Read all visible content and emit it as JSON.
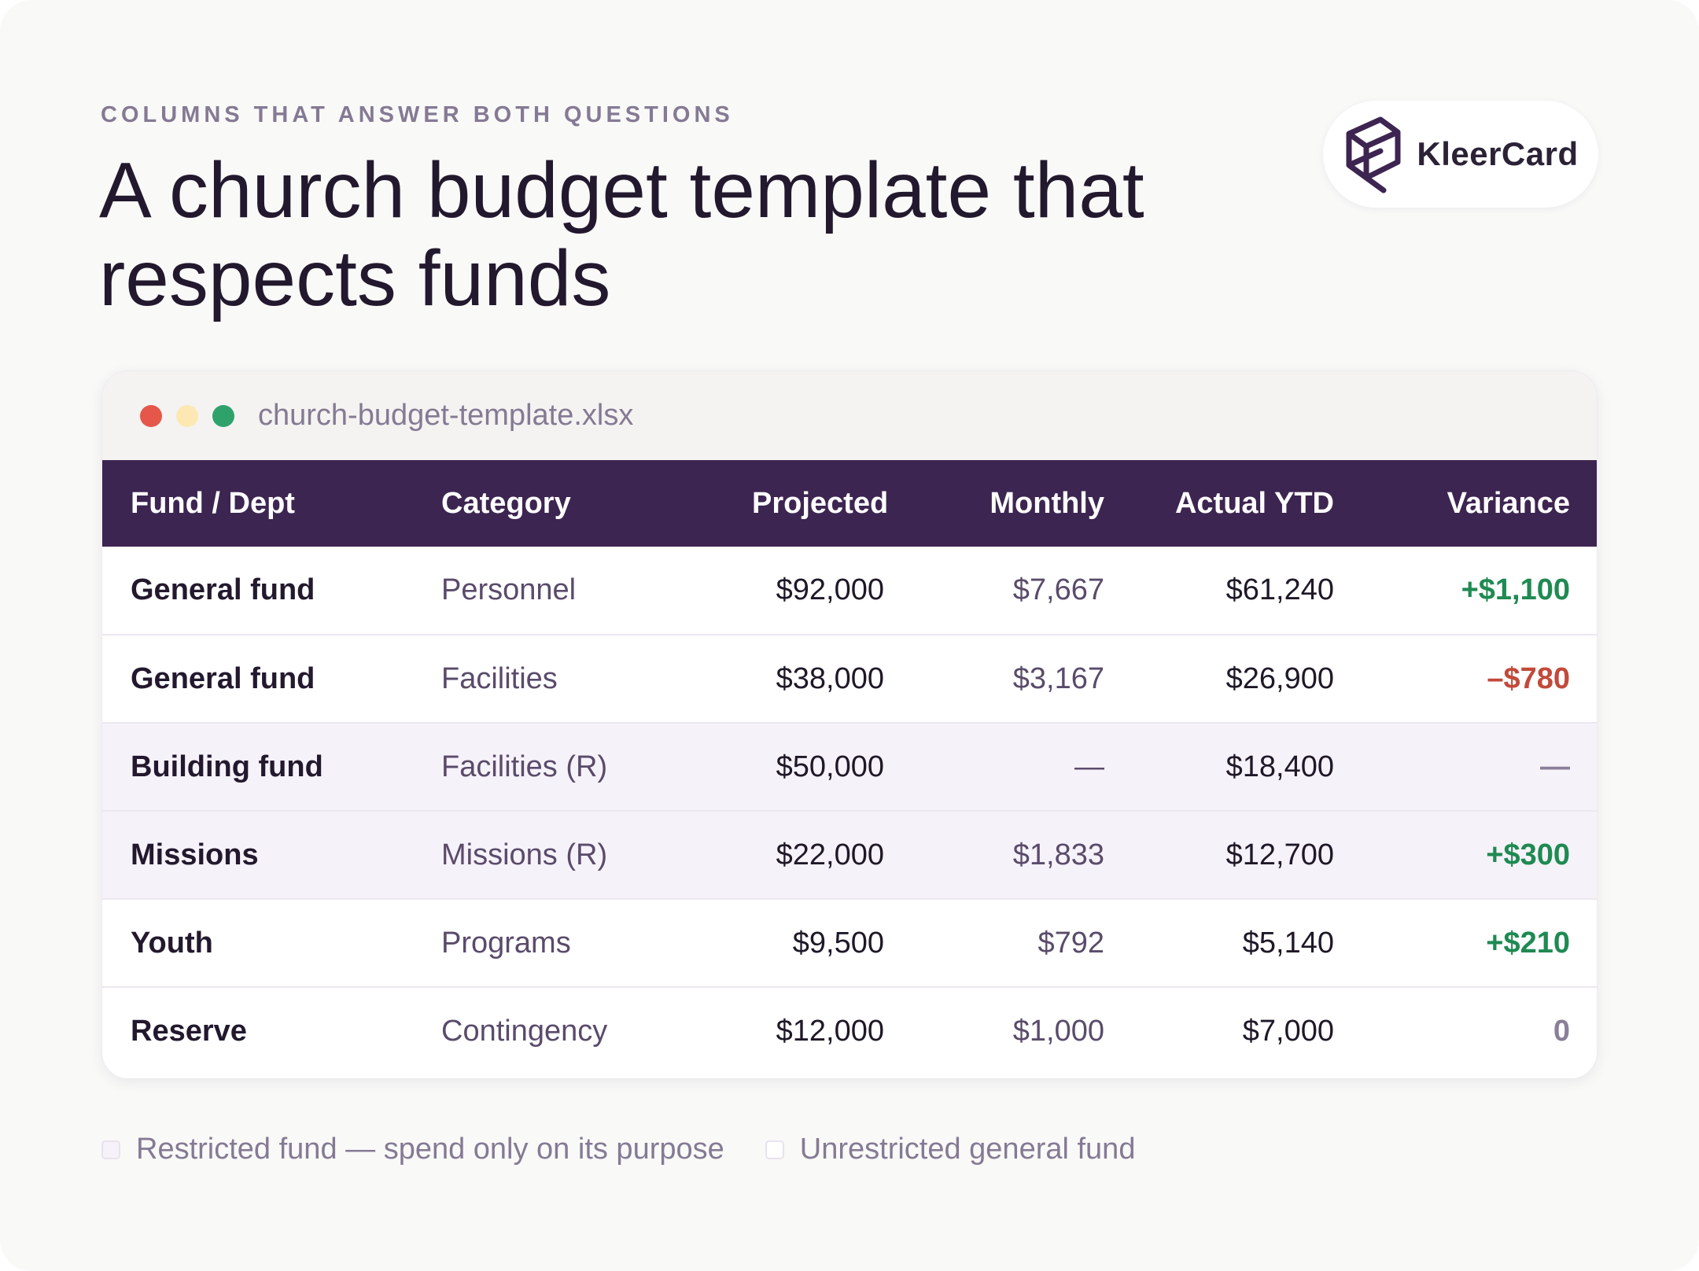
{
  "header": {
    "eyebrow": "COLUMNS THAT ANSWER BOTH QUESTIONS",
    "title": "A church budget template that respects funds"
  },
  "logo": {
    "text": "KleerCard",
    "icon": "kleercard-logo-icon"
  },
  "window": {
    "filename": "church-budget-template.xlsx",
    "dots": [
      {
        "name": "close-dot",
        "color": "#e4574a"
      },
      {
        "name": "minimize-dot",
        "color": "#fde8b4"
      },
      {
        "name": "maximize-dot",
        "color": "#2ea26a"
      }
    ]
  },
  "table": {
    "columns": [
      "Fund / Dept",
      "Category",
      "Projected",
      "Monthly",
      "Actual YTD",
      "Variance"
    ],
    "rows": [
      {
        "fund": "General fund",
        "category": "Personnel",
        "projected": "$92,000",
        "monthly": "$7,667",
        "actual": "$61,240",
        "variance": "+$1,100",
        "variance_type": "pos",
        "restricted": false
      },
      {
        "fund": "General fund",
        "category": "Facilities",
        "projected": "$38,000",
        "monthly": "$3,167",
        "actual": "$26,900",
        "variance": "–$780",
        "variance_type": "neg",
        "restricted": false
      },
      {
        "fund": "Building fund",
        "category": "Facilities (R)",
        "projected": "$50,000",
        "monthly": "—",
        "actual": "$18,400",
        "variance": "—",
        "variance_type": "neutral",
        "restricted": true
      },
      {
        "fund": "Missions",
        "category": "Missions (R)",
        "projected": "$22,000",
        "monthly": "$1,833",
        "actual": "$12,700",
        "variance": "+$300",
        "variance_type": "pos",
        "restricted": true
      },
      {
        "fund": "Youth",
        "category": "Programs",
        "projected": "$9,500",
        "monthly": "$792",
        "actual": "$5,140",
        "variance": "+$210",
        "variance_type": "pos",
        "restricted": false
      },
      {
        "fund": "Reserve",
        "category": "Contingency",
        "projected": "$12,000",
        "monthly": "$1,000",
        "actual": "$7,000",
        "variance": "0",
        "variance_type": "neutral",
        "restricted": false
      }
    ]
  },
  "legend": {
    "restricted": {
      "label": "Restricted fund — spend only on its purpose",
      "color": "#f6f2f9"
    },
    "unrestricted": {
      "label": "Unrestricted general fund",
      "color": "#ffffff"
    }
  },
  "colors": {
    "header_bg": "#3d2551",
    "positive": "#1f8a52",
    "negative": "#c24a3a",
    "restricted_row": "#f6f2f9"
  }
}
